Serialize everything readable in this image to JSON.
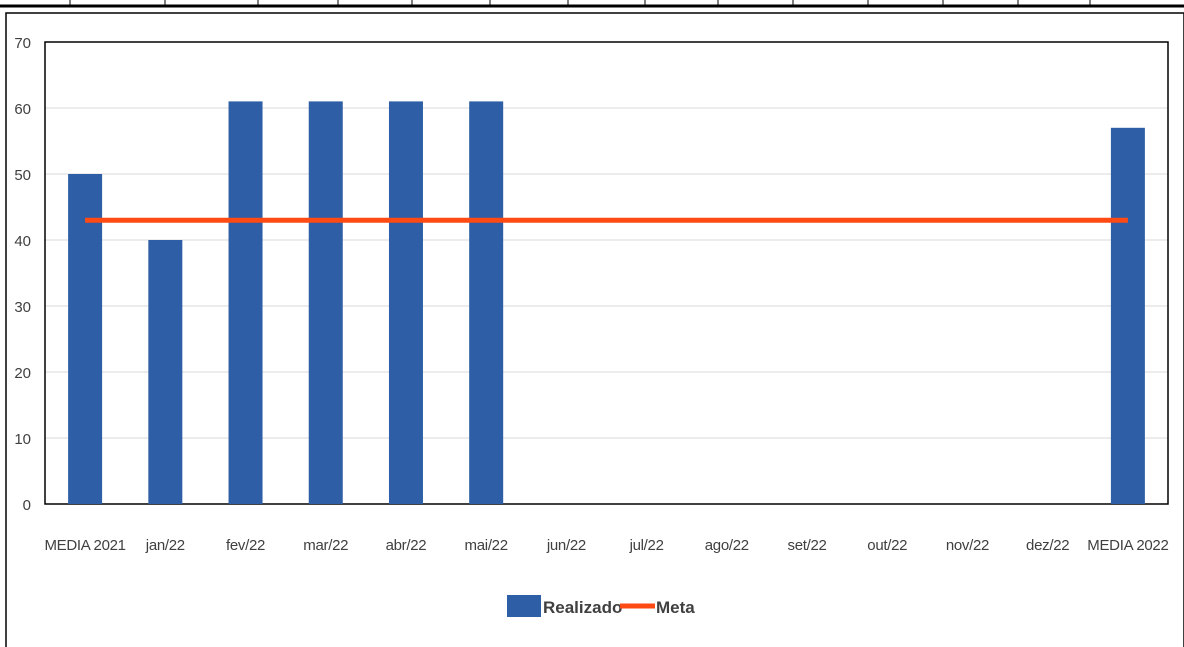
{
  "chart_data": {
    "type": "bar",
    "categories": [
      "MEDIA 2021",
      "jan/22",
      "fev/22",
      "mar/22",
      "abr/22",
      "mai/22",
      "jun/22",
      "jul/22",
      "ago/22",
      "set/22",
      "out/22",
      "nov/22",
      "dez/22",
      "MEDIA 2022"
    ],
    "series": [
      {
        "name": "Realizado",
        "type": "bar",
        "color": "#2e5fa6",
        "values": [
          50,
          40,
          61,
          61,
          61,
          61,
          null,
          null,
          null,
          null,
          null,
          null,
          null,
          57
        ]
      },
      {
        "name": "Meta",
        "type": "line",
        "color": "#ff4a14",
        "values": [
          43,
          43,
          43,
          43,
          43,
          43,
          43,
          43,
          43,
          43,
          43,
          43,
          43,
          43
        ]
      }
    ],
    "ylim": [
      0,
      70
    ],
    "yticks": [
      0,
      10,
      20,
      30,
      40,
      50,
      60,
      70
    ],
    "grid": true,
    "legend": "bottom-center"
  }
}
